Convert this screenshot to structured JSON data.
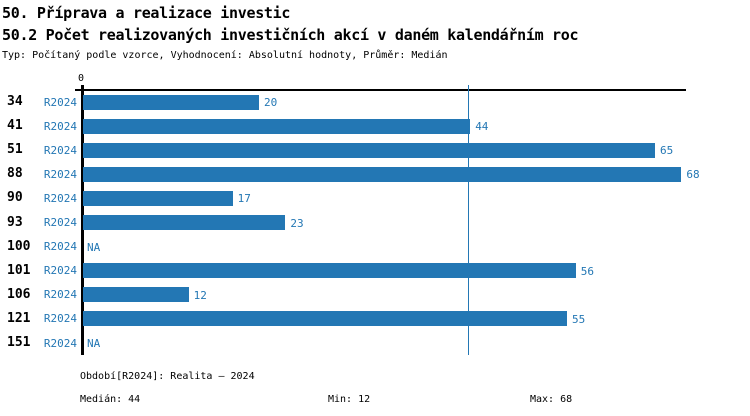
{
  "header": {
    "title_line_1": "50. Příprava a realizace investic",
    "title_line_2": "50.2 Počet realizovaných investičních akcí v daném kalendářním roc",
    "subtitle": "Typ: Počítaný podle vzorce, Vyhodnocení: Absolutní hodnoty, Průměr: Medián"
  },
  "colors": {
    "bar_blue": "#2377b4",
    "text_blue": "#2377b4",
    "axis_black": "#000000",
    "background": "#ffffff"
  },
  "chart_data": {
    "type": "bar",
    "orientation": "horizontal",
    "title": "50.2 Počet realizovaných investičních akcí v daném kalendářním roc",
    "categories": [
      "34",
      "41",
      "51",
      "88",
      "90",
      "93",
      "100",
      "101",
      "106",
      "121",
      "151"
    ],
    "series": [
      {
        "name": "R2024",
        "values": [
          20,
          44,
          65,
          68,
          17,
          23,
          null,
          56,
          12,
          55,
          null
        ],
        "value_labels": [
          "20",
          "44",
          "65",
          "68",
          "17",
          "23",
          "NA",
          "56",
          "12",
          "55",
          "NA"
        ]
      }
    ],
    "na_label": "NA",
    "x_axis": {
      "origin_tick_label": "0",
      "min": 0,
      "max": 68.5,
      "grid": false
    },
    "reference_line": {
      "value": 44,
      "meaning": "median"
    },
    "legend_position": "none"
  },
  "footer": {
    "period": "Období[R2024]: Realita – 2024",
    "median": "Medián: 44",
    "min": "Min: 12",
    "max": "Max: 68"
  }
}
